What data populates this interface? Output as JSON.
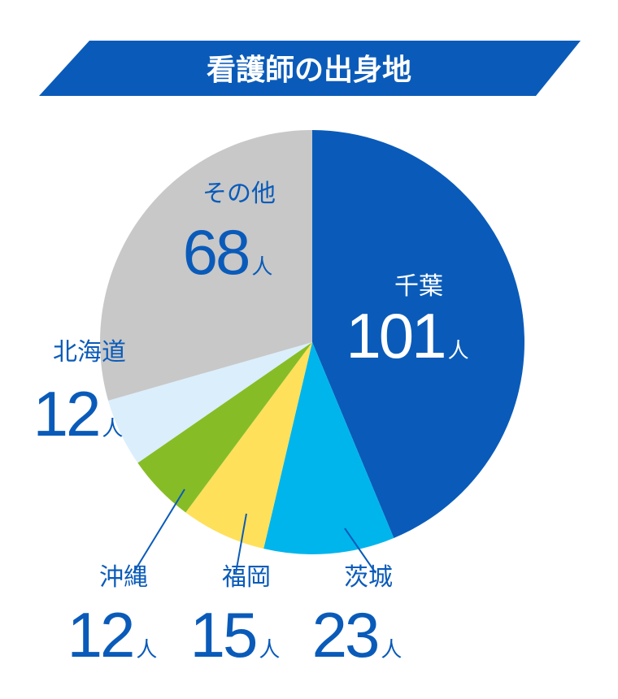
{
  "title": "看護師の出身地",
  "unit": "人",
  "colors": {
    "banner": "#0a5bb9",
    "label_light": "#ffffff",
    "label_dark": "#0a5bb9",
    "leader": "#0a5bb9"
  },
  "chart_data": {
    "type": "pie",
    "start": "top",
    "direction": "clockwise",
    "legend": "none",
    "slices": [
      {
        "label": "千葉",
        "value": 101,
        "color": "#0a5bb9"
      },
      {
        "label": "茨城",
        "value": 23,
        "color": "#00b5ec"
      },
      {
        "label": "福岡",
        "value": 15,
        "color": "#ffe05a"
      },
      {
        "label": "沖縄",
        "value": 12,
        "color": "#86bd26"
      },
      {
        "label": "北海道",
        "value": 12,
        "color": "#dbeefb"
      },
      {
        "label": "その他",
        "value": 68,
        "color": "#c8c8c8"
      }
    ]
  }
}
